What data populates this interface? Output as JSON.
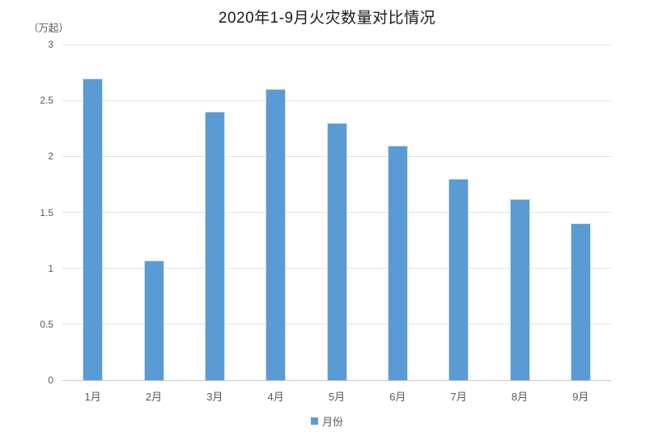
{
  "chart_data": {
    "type": "bar",
    "title": "2020年1-9月火灾数量对比情况",
    "unit_label": "（万起）",
    "categories": [
      "1月",
      "2月",
      "3月",
      "4月",
      "5月",
      "6月",
      "7月",
      "8月",
      "9月"
    ],
    "values": [
      2.7,
      1.07,
      2.4,
      2.6,
      2.3,
      2.1,
      1.8,
      1.62,
      1.4
    ],
    "legend": [
      "月份"
    ],
    "xlabel": "",
    "ylabel": "（万起）",
    "ylim": [
      0,
      3
    ],
    "yticks": [
      0,
      0.5,
      1,
      1.5,
      2,
      2.5,
      3
    ],
    "grid": "horizontal",
    "legend_position": "bottom",
    "bar_color": "#5B9BD5",
    "bar_border_color": "#cfe0f1",
    "gridline_color": "#e2e2e2",
    "axis_text_color": "#595959",
    "title_color": "#1a1a1a"
  }
}
